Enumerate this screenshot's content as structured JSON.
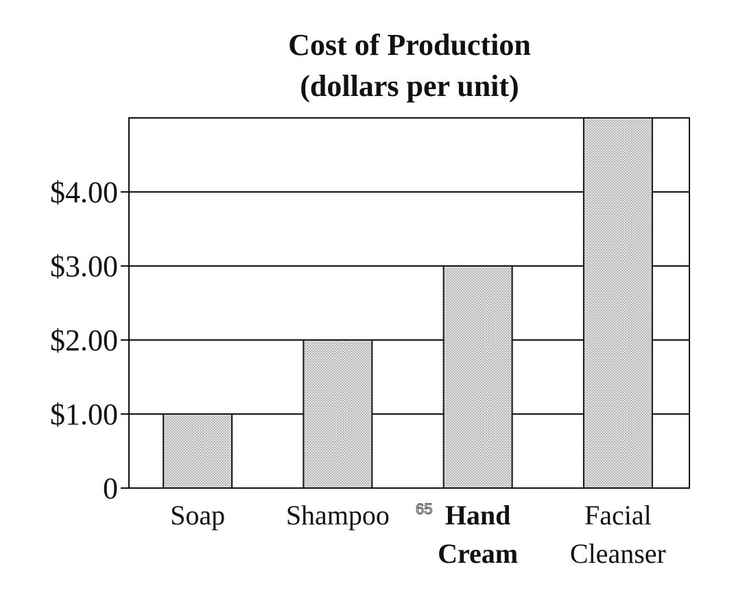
{
  "chart_data": {
    "type": "bar",
    "title": "Cost of Production",
    "subtitle": "(dollars per unit)",
    "categories": [
      [
        "Soap"
      ],
      [
        "Shampoo"
      ],
      [
        "Hand",
        "Cream"
      ],
      [
        "Facial",
        "Cleanser"
      ]
    ],
    "category_bold": [
      false,
      false,
      true,
      false
    ],
    "values": [
      1.0,
      2.0,
      3.0,
      5.0
    ],
    "ylim": [
      0,
      5
    ],
    "yticks": [
      0,
      1,
      2,
      3,
      4
    ],
    "ytick_labels": [
      "0",
      "$1.00",
      "$2.00",
      "$3.00",
      "$4.00"
    ],
    "grid": true,
    "bar_color": "#c9c9c9",
    "xlabel": "",
    "ylabel": ""
  },
  "page_number": "65"
}
